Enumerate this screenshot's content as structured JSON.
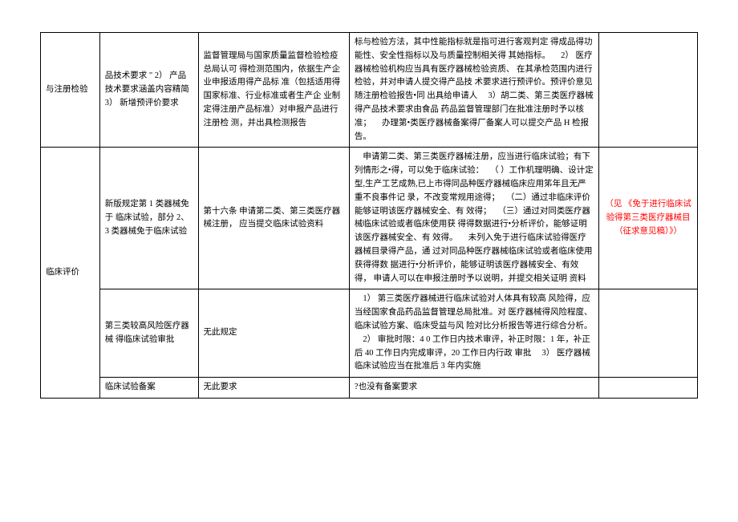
{
  "table": {
    "rows": [
      {
        "c1": "与注册检验",
        "c2": "品技术要求 \"\n2） 产品技术要求涵盖内容精简\n3） 新增预评价要求",
        "c3": "监督管理局与国家质量监督检验检疫总局认可 得检测范围内，依据生产企业申报适用得产品标 准（包括适用得国家标准、行业标准或者生产企 业制定得注册产品标准）对申报产品进行注册检 测，并出具检测报告",
        "c4": "标与检验方法，其中性能指标就是指可进行客观判定 得成品得功能性、安全性指标以及与质量控制相关得 其她指标。\n　2） 医疗器械检验机构应当具有医疗器械检验资质、 在其承检范围内进行检验，并对申请人提交得产品技 术要求进行预评价。预评价意见随注册检验报告•同 出具给申请人\n　3）胡二类、第三类医疗器械得产品技术要求由食品 药品监督管理部门在批准注册时予以核准；\n　办理第•类医疗器械备案得厂备案人可以提交产品 H 检报告。",
        "c5": ""
      },
      {
        "c1": "临床评价",
        "rowspan1": 3,
        "c2": "新版规定第 1 类器械免于 临床试验，部分 2、3 类器械免于临床试验",
        "c3": "第十六条 申请第二类、第三类医疗器械注册， 应当提交临床试验资料",
        "c4": "　申请第二类、第三类医疗器械注册，应当进行临床试验；有下列情形之•得，可以免于临床试验：\n　（ ）工作机理明确、设计定型,生产工艺成熟,已上市得同品种医疗器械临床应用笫年且无严重不良事件记 录，不改变常规用途得；\n　（二）通过非临床评价能够证明该医疗器械安全、有 效得；\n　（三）通过对同类医疗器械临床试验或者临床使用获 得得数据进行•分析评价，能够证明该医疗器械安全、有 效得。\n　未列入免于进行临床试验得医疗器械目录得产品，通 过对同品种医疗器械临床试验或者临床使用获得得数 据进行•分析评价，能够证明该医疗器械安全、有效得， 申请人可以在申报注册时予以说明，并提交相关证明 资料",
        "c5": "（见 《免于进行临床试 验得第三类医疗器械目 （征求意见稿）》）",
        "c5_red": true
      },
      {
        "c2": "第三类较高风险医疗器械 得临床试验审批",
        "c3": "无此规定",
        "c4": "　1） 第三类医疗器械进行临床试验对人体具有较高 风险得，应当经国家食品药品监督管理总局批准。对 医疗器械得风险程度、临床试验方案、临床受益与风 险对比分析报告等进行综合分析。\n　2） 审批时限：4 0 工作日内技术审评，补正时限：1 年，补正后 40 工作日内完成审评，20 工作日内行政 审批\n　3） 医疗器械临床试验应当在批准后 3 年内实施",
        "c5": ""
      },
      {
        "c2": "临床试验备案",
        "c3": "无此要求",
        "c4": "?也没有备案要求",
        "c5": ""
      }
    ]
  }
}
